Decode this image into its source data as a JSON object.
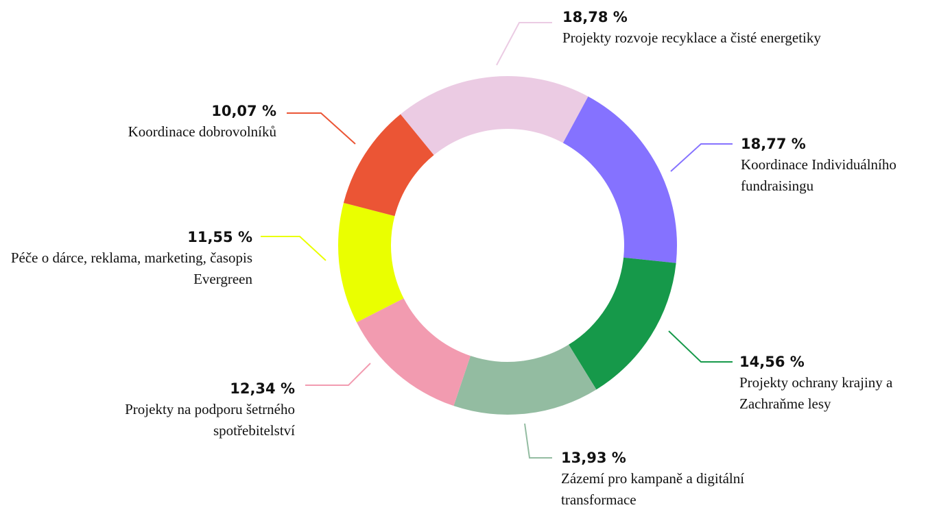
{
  "chart_data": {
    "type": "donut",
    "categories": [
      "Projekty rozvoje recyklace a čisté energetiky",
      "Koordinace Individuálního fundraisingu",
      "Projekty ochrany krajiny a Zachraňme lesy",
      "Zázemí pro kampaně a digitální transformace",
      "Projekty na podporu šetrného spotřebitelství",
      "Péče o dárce, reklama, marketing, časopis Evergreen",
      "Koordinace dobrovolníků"
    ],
    "values": [
      18.78,
      18.77,
      14.56,
      13.93,
      12.34,
      11.55,
      10.07
    ],
    "value_labels": [
      "18,78 %",
      "18,77 %",
      "14,56 %",
      "13,93 %",
      "12,34 %",
      "11,55 %",
      "10,07 %"
    ],
    "colors": [
      "#ebcbe3",
      "#8572ff",
      "#16994a",
      "#93bca1",
      "#f29bb0",
      "#eaff00",
      "#eb5535"
    ]
  }
}
